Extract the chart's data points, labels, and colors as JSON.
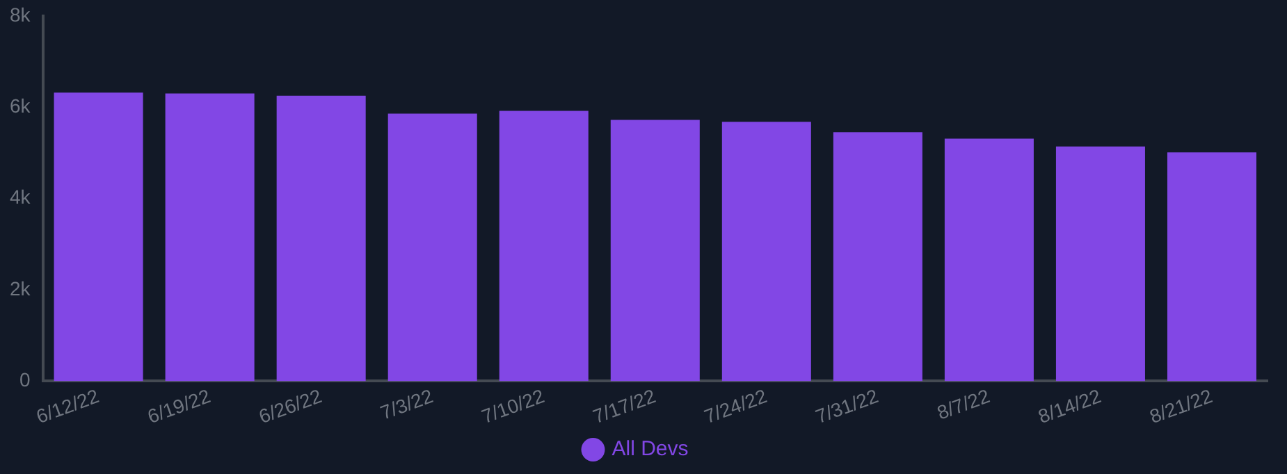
{
  "chart_data": {
    "type": "bar",
    "categories": [
      "6/12/22",
      "6/19/22",
      "6/26/22",
      "7/3/22",
      "7/10/22",
      "7/17/22",
      "7/24/22",
      "7/31/22",
      "8/7/22",
      "8/14/22",
      "8/21/22"
    ],
    "series": [
      {
        "name": "All Devs",
        "color": "#8247e5",
        "values": [
          6320,
          6300,
          6250,
          5860,
          5920,
          5720,
          5680,
          5450,
          5310,
          5140,
          5010
        ]
      }
    ],
    "ylim": [
      0,
      8000
    ],
    "yticks": [
      {
        "value": 0,
        "label": "0"
      },
      {
        "value": 2000,
        "label": "2k"
      },
      {
        "value": 4000,
        "label": "4k"
      },
      {
        "value": 6000,
        "label": "6k"
      },
      {
        "value": 8000,
        "label": "8k"
      }
    ],
    "grid": false,
    "legend": "bottom"
  }
}
